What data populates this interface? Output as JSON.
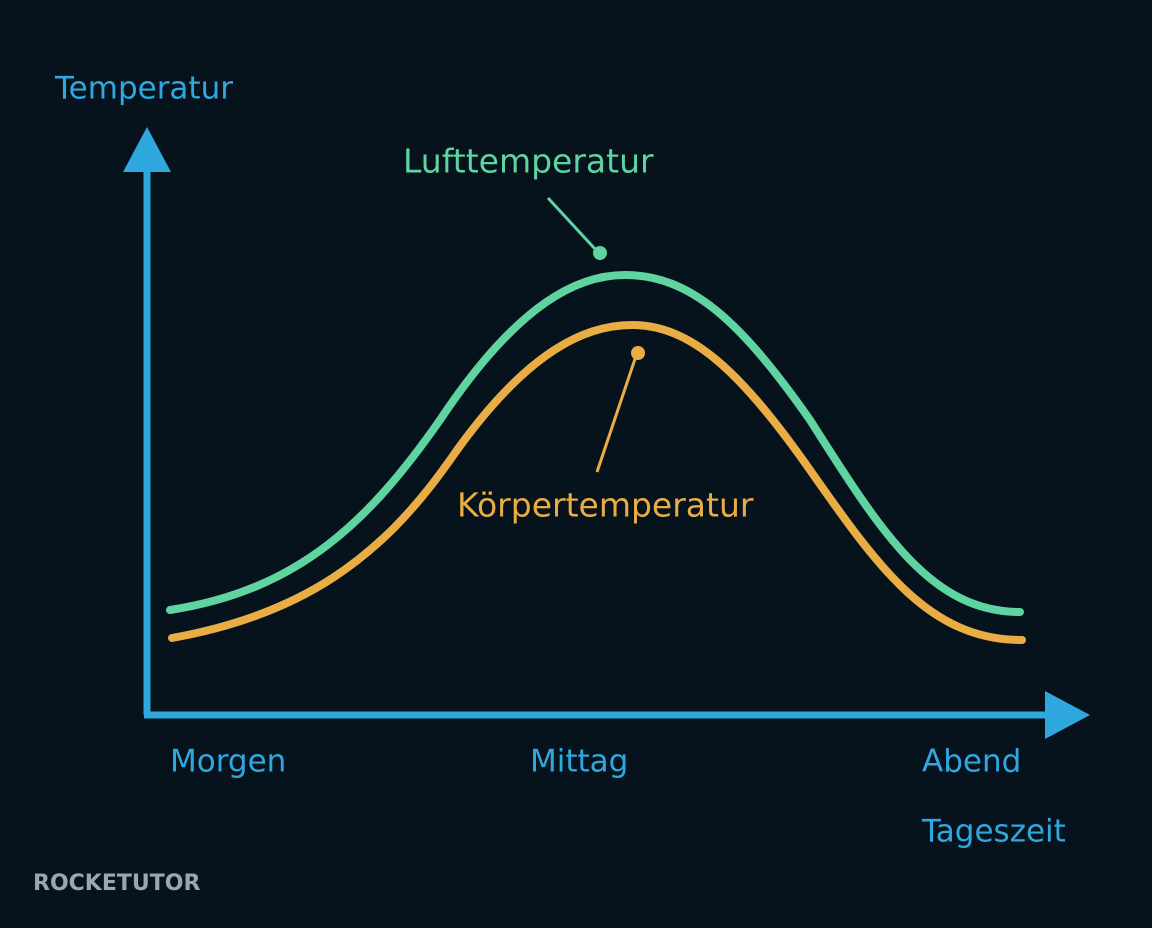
{
  "axes": {
    "y_label": "Temperatur",
    "x_label": "Tageszeit",
    "x_labels": [
      "Morgen",
      "Mittag",
      "Abend"
    ]
  },
  "curves": [
    {
      "label": "Lufttemperatur"
    },
    {
      "label": "Körpertemperatur"
    }
  ],
  "logo": "ROCKETUTOR"
}
